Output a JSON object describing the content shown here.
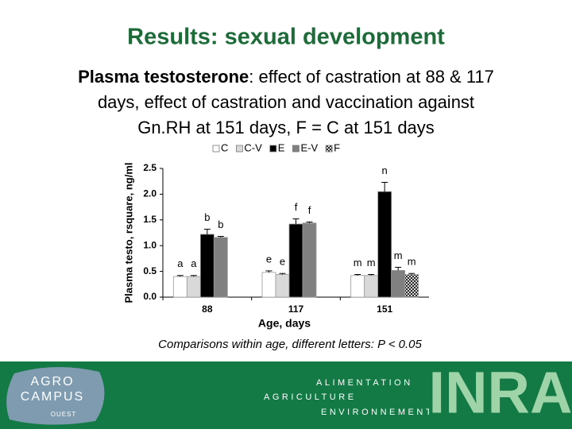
{
  "header": {
    "title": "Results: sexual development"
  },
  "subtitle": {
    "bold": "Plasma testosterone",
    "lines": [
      ": effect of castration at 88 & 117",
      "days, effect of castration and vaccination against",
      "Gn.RH at 151 days, F = C at 151 days"
    ]
  },
  "chart_data": {
    "type": "bar",
    "ylabel": "Plasma testo, rsquare, ng/ml",
    "xlabel": "Age, days",
    "categories": [
      "88",
      "117",
      "151"
    ],
    "series": [
      {
        "name": "C",
        "color": "#ffffff",
        "values": [
          0.4,
          0.48,
          0.42
        ],
        "errors": [
          0.02,
          0.03,
          0.02
        ],
        "letters": [
          "a",
          "e",
          "m"
        ]
      },
      {
        "name": "C-V",
        "color": "#d9d9d9",
        "values": [
          0.4,
          0.44,
          0.42
        ],
        "errors": [
          0.02,
          0.02,
          0.02
        ],
        "letters": [
          "a",
          "e",
          "m"
        ]
      },
      {
        "name": "E",
        "color": "#000000",
        "values": [
          1.22,
          1.42,
          2.05
        ],
        "errors": [
          0.1,
          0.1,
          0.18
        ],
        "letters": [
          "b",
          "f",
          "n"
        ]
      },
      {
        "name": "E-V",
        "color": "#808080",
        "values": [
          1.16,
          1.44,
          0.52
        ],
        "errors": [
          0.02,
          0.02,
          0.06
        ],
        "letters": [
          "b",
          "f",
          "m"
        ]
      },
      {
        "name": "F",
        "color": "#ffffff",
        "pattern": "crosshatch",
        "values": [
          null,
          null,
          0.44
        ],
        "errors": [
          null,
          null,
          0.02
        ],
        "letters": [
          null,
          null,
          "m"
        ]
      }
    ],
    "ylim": [
      0,
      2.5
    ],
    "yticks": [
      {
        "value": 0,
        "label": "0.0"
      },
      {
        "value": 0.5,
        "label": "0.5"
      },
      {
        "value": 1,
        "label": "1.0"
      },
      {
        "value": 1.5,
        "label": "1.5"
      },
      {
        "value": 2,
        "label": "2.0"
      },
      {
        "value": 2.5,
        "label": "2.5"
      }
    ],
    "legend": "top"
  },
  "footnote": "Comparisons within age, different letters: P < 0.05",
  "footer": {
    "logo_lines": [
      "AGRO",
      "CAMPUS",
      "OUEST"
    ],
    "words": [
      "ALIMENTATION",
      "AGRICULTURE",
      "ENVIRONNEMENT"
    ],
    "brand": "INRA"
  }
}
